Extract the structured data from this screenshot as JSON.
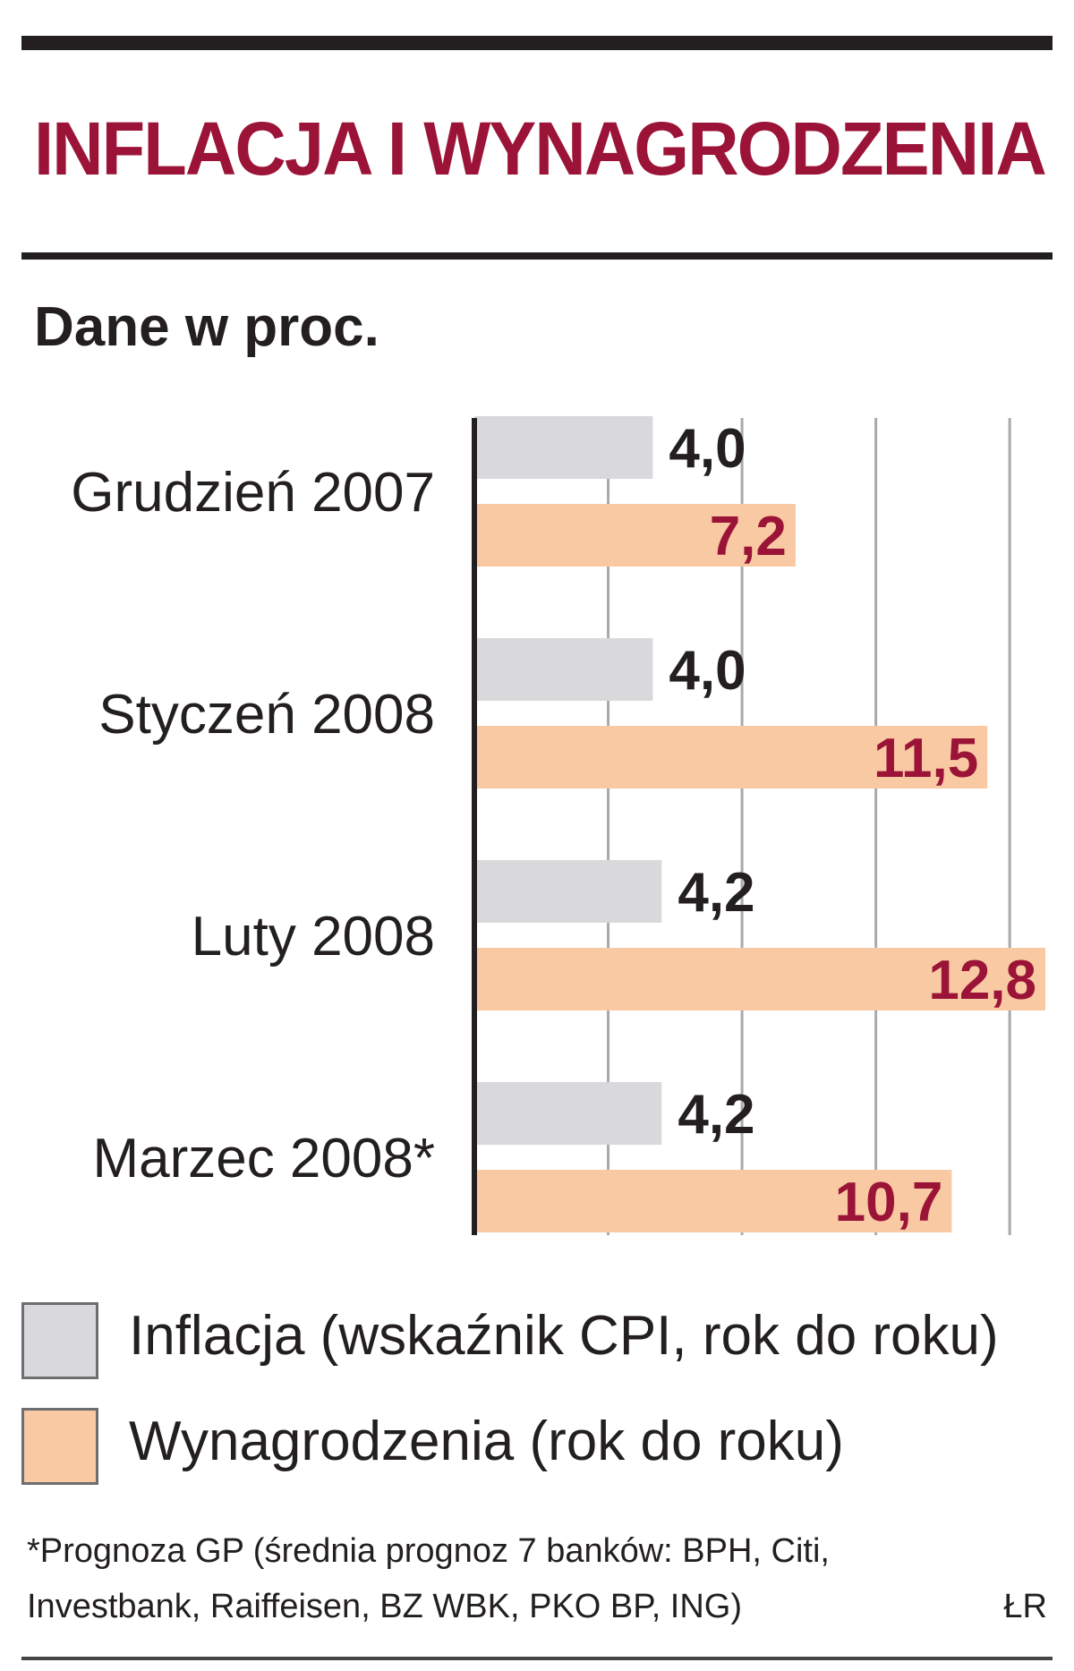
{
  "title": "INFLACJA I WYNAGRODZENIA",
  "subtitle": "Dane w proc.",
  "colors": {
    "title": "#9b1438",
    "inflation": "#d9d9db",
    "wages": "#f9c9a3",
    "wage_value": "#9b1438",
    "inflation_value": "#231f20"
  },
  "chart_data": {
    "type": "bar",
    "orientation": "horizontal",
    "title": "INFLACJA I WYNAGRODZENIA",
    "subtitle": "Dane w proc.",
    "categories": [
      "Grudzień 2007",
      "Styczeń 2008",
      "Luty 2008",
      "Marzec 2008*"
    ],
    "series": [
      {
        "name": "Inflacja (wskaźnik CPI, rok do roku)",
        "values": [
          4.0,
          4.0,
          4.2,
          4.2
        ],
        "labels": [
          "4,0",
          "4,0",
          "4,2",
          "4,2"
        ]
      },
      {
        "name": "Wynagrodzenia (rok do roku)",
        "values": [
          7.2,
          11.5,
          12.8,
          10.7
        ],
        "labels": [
          "7,2",
          "11,5",
          "12,8",
          "10,7"
        ]
      }
    ],
    "xlim": [
      0,
      13
    ],
    "gridlines_at": [
      3,
      6,
      9,
      12
    ],
    "grid": true,
    "axis_tick_labels": false,
    "legend": "bottom"
  },
  "legend": {
    "inflation": "Inflacja (wskaźnik CPI, rok do roku)",
    "wages": "Wynagrodzenia (rok do roku)"
  },
  "footnote": {
    "line1": "*Prognoza GP (średnia prognoz 7 banków: BPH, Citi,",
    "line2": "Investbank, Raiffeisen, BZ WBK, PKO BP, ING)"
  },
  "source": "ŁR"
}
